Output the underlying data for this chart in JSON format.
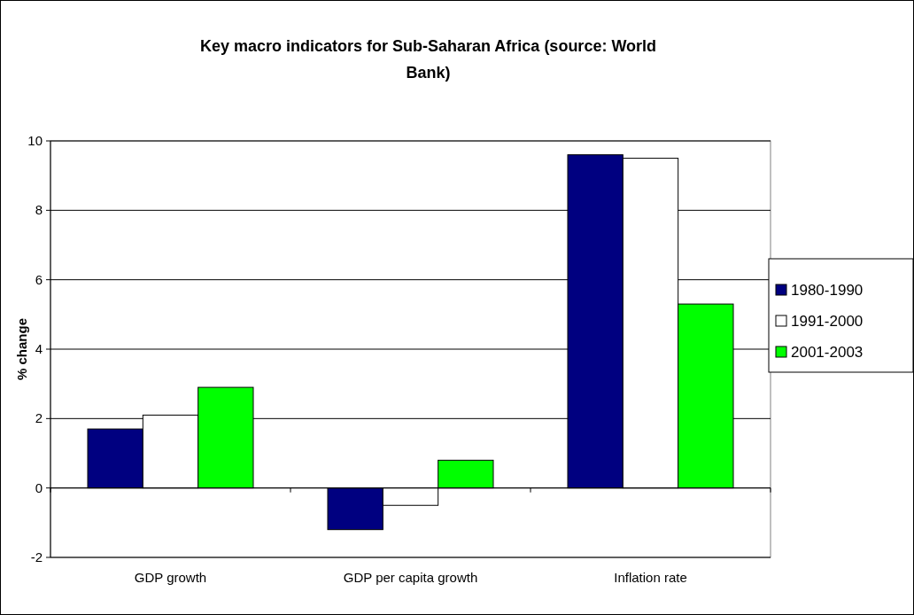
{
  "chart_data": {
    "type": "bar",
    "title": "Key macro indicators for Sub-Saharan Africa (source: World Bank)",
    "ylabel": "% change",
    "categories": [
      "GDP growth",
      "GDP per capita growth",
      "Inflation rate"
    ],
    "series": [
      {
        "name": "1980-1990",
        "color": "#000080",
        "values": [
          1.7,
          -1.2,
          9.6
        ]
      },
      {
        "name": "1991-2000",
        "color": "#ffffff",
        "values": [
          2.1,
          -0.5,
          9.5
        ]
      },
      {
        "name": "2001-2003",
        "color": "#00ff00",
        "values": [
          2.9,
          0.8,
          5.3
        ]
      }
    ],
    "ylim": [
      -2,
      10
    ],
    "yticks": [
      -2,
      0,
      2,
      4,
      6,
      8,
      10
    ],
    "grid": "y",
    "legend": "right"
  }
}
